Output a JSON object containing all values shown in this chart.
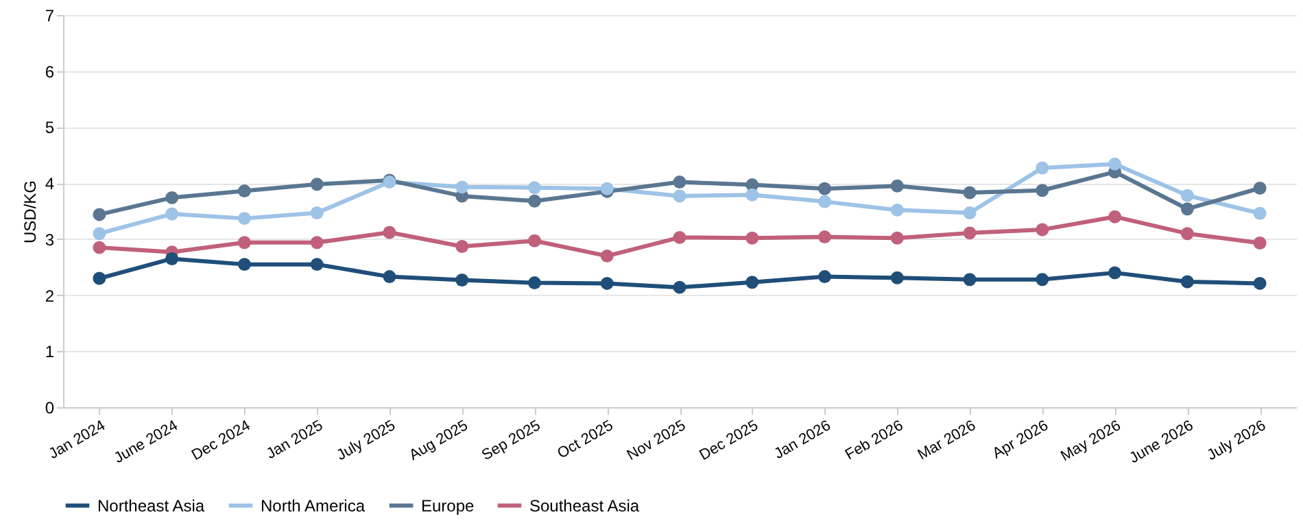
{
  "chart_data": {
    "type": "line",
    "ylabel": "USD/KG",
    "categories": [
      "Jan 2024",
      "June 2024",
      "Dec 2024",
      "Jan 2025",
      "July 2025",
      "Aug 2025",
      "Sep 2025",
      "Oct 2025",
      "Nov 2025",
      "Dec 2025",
      "Jan 2026",
      "Feb 2026",
      "Mar 2026",
      "Apr 2026",
      "May 2026",
      "June 2026",
      "July 2026"
    ],
    "series": [
      {
        "name": "Northeast Asia",
        "color": "#1f4e79",
        "values": [
          2.3,
          2.65,
          2.55,
          2.55,
          2.33,
          2.27,
          2.22,
          2.21,
          2.14,
          2.23,
          2.33,
          2.31,
          2.28,
          2.28,
          2.4,
          2.24,
          2.21
        ]
      },
      {
        "name": "North America",
        "color": "#9dc3e6",
        "values": [
          3.1,
          3.45,
          3.37,
          3.47,
          4.02,
          3.93,
          3.92,
          3.9,
          3.77,
          3.79,
          3.67,
          3.52,
          3.47,
          4.27,
          4.34,
          3.78,
          3.46
        ]
      },
      {
        "name": "Europe",
        "color": "#5a7691",
        "values": [
          3.44,
          3.74,
          3.86,
          3.98,
          4.05,
          3.77,
          3.68,
          3.85,
          4.02,
          3.97,
          3.9,
          3.95,
          3.83,
          3.87,
          4.2,
          3.54,
          3.91
        ]
      },
      {
        "name": "Southeast Asia",
        "color": "#c0607a",
        "values": [
          2.85,
          2.77,
          2.94,
          2.94,
          3.12,
          2.87,
          2.97,
          2.7,
          3.03,
          3.02,
          3.04,
          3.02,
          3.11,
          3.17,
          3.4,
          3.1,
          2.93
        ]
      }
    ],
    "ylim": [
      0,
      7
    ],
    "yticks": [
      0,
      1,
      2,
      3,
      4,
      5,
      6,
      7
    ],
    "grid": "y",
    "legend": "bottom",
    "marker": "circle",
    "line_style": "solid"
  }
}
